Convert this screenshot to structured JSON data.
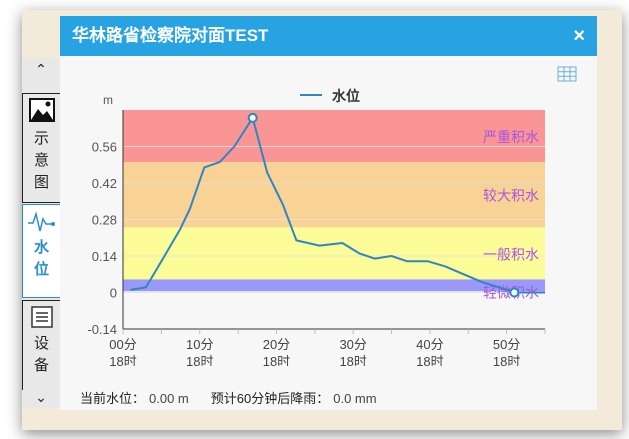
{
  "window": {
    "title": "华林路省检察院对面TEST",
    "close_label": "×"
  },
  "sidebar": {
    "tabs": [
      {
        "label": "示意图",
        "icon": "image-icon"
      },
      {
        "label": "水位",
        "icon": "waveform-icon",
        "active": true
      },
      {
        "label": "设备",
        "icon": "document-icon"
      }
    ]
  },
  "status": {
    "current_label": "当前水位：",
    "current_value": "0.00 m",
    "forecast_label": "预计60分钟后降雨：",
    "forecast_value": "0.0 mm"
  },
  "chart_data": {
    "type": "line",
    "ylabel": "m",
    "legend": [
      "水位"
    ],
    "legend_position": "top",
    "ylim": [
      -0.14,
      0.7
    ],
    "yticks": [
      -0.14,
      0,
      0.14,
      0.28,
      0.42,
      0.56
    ],
    "ytick_labels": [
      "-0.14",
      "0",
      "0.14",
      "0.28",
      "0.42",
      "0.56"
    ],
    "xlim": [
      0,
      55
    ],
    "xticks": [
      0,
      10,
      20,
      30,
      40,
      50
    ],
    "xtick_labels": [
      [
        "00分",
        "18时"
      ],
      [
        "10分",
        "18时"
      ],
      [
        "20分",
        "18时"
      ],
      [
        "30分",
        "18时"
      ],
      [
        "40分",
        "18时"
      ],
      [
        "50分",
        "18时"
      ]
    ],
    "bands": [
      {
        "label": "严重积水",
        "from": 0.5,
        "to": 0.7,
        "color": "#f99595"
      },
      {
        "label": "较大积水",
        "from": 0.25,
        "to": 0.5,
        "color": "#f9d296"
      },
      {
        "label": "一般积水",
        "from": 0.05,
        "to": 0.25,
        "color": "#fbfb98"
      },
      {
        "label": "轻微积水",
        "from": 0.005,
        "to": 0.05,
        "color": "#9a98f8"
      }
    ],
    "band_label_color": "#a855e0",
    "line_color": "#2f86c4",
    "x": [
      1,
      3,
      5,
      7.4,
      8.7,
      10.6,
      12.6,
      14.5,
      16.9,
      18.8,
      20.8,
      22.6,
      25.6,
      28.6,
      30.8,
      32.8,
      35,
      37,
      39.7,
      42,
      44.4,
      46.8,
      49,
      51,
      55
    ],
    "y": [
      0.01,
      0.02,
      0.12,
      0.24,
      0.32,
      0.48,
      0.5,
      0.56,
      0.67,
      0.46,
      0.34,
      0.2,
      0.18,
      0.19,
      0.15,
      0.13,
      0.14,
      0.12,
      0.12,
      0.1,
      0.07,
      0.04,
      0.02,
      0.0,
      0.0
    ],
    "markers": [
      8,
      23
    ]
  }
}
